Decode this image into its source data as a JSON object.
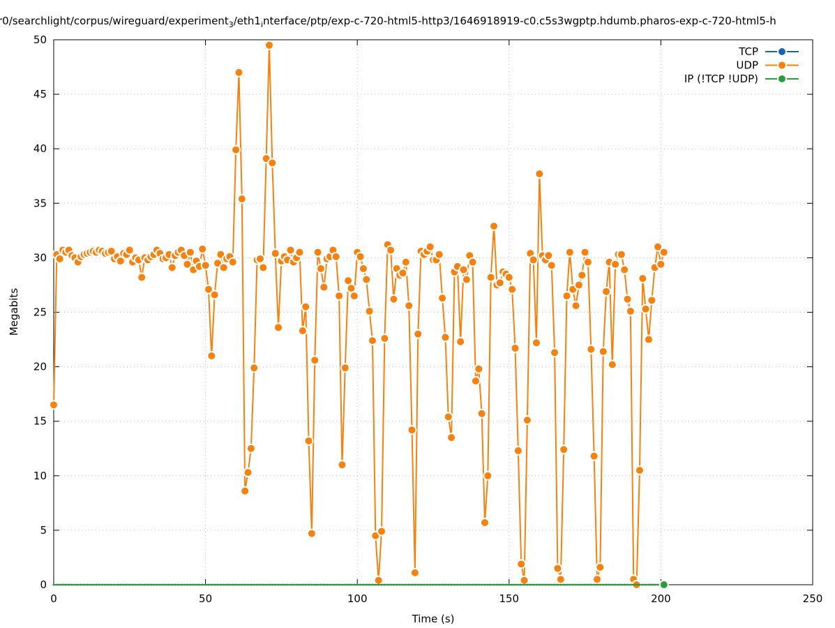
{
  "chart_data": {
    "type": "line",
    "title_parts": [
      "r0/searchlight/corpus/wireguard/experiment",
      "3",
      "/eth1",
      "i",
      "nterface/ptp/exp-c-720-html5-http3/1646918919-c0.c5s3wgptp.hdumb.pharos-exp-c-720-html5-h"
    ],
    "xlabel": "Time (s)",
    "ylabel": "Megabits",
    "xlim": [
      0,
      250
    ],
    "xticks": [
      0,
      50,
      100,
      150,
      200,
      250
    ],
    "ylim": [
      0,
      50
    ],
    "yticks": [
      0,
      5,
      10,
      15,
      20,
      25,
      30,
      35,
      40,
      45,
      50
    ],
    "grid": true,
    "legend": "top-right",
    "x": [
      0,
      1,
      2,
      3,
      4,
      5,
      6,
      7,
      8,
      9,
      10,
      11,
      12,
      13,
      14,
      15,
      16,
      17,
      18,
      19,
      20,
      21,
      22,
      23,
      24,
      25,
      26,
      27,
      28,
      29,
      30,
      31,
      32,
      33,
      34,
      35,
      36,
      37,
      38,
      39,
      40,
      41,
      42,
      43,
      44,
      45,
      46,
      47,
      48,
      49,
      50,
      51,
      52,
      53,
      54,
      55,
      56,
      57,
      58,
      59,
      60,
      61,
      62,
      63,
      64,
      65,
      66,
      67,
      68,
      69,
      70,
      71,
      72,
      73,
      74,
      75,
      76,
      77,
      78,
      79,
      80,
      81,
      82,
      83,
      84,
      85,
      86,
      87,
      88,
      89,
      90,
      91,
      92,
      93,
      94,
      95,
      96,
      97,
      98,
      99,
      100,
      101,
      102,
      103,
      104,
      105,
      106,
      107,
      108,
      109,
      110,
      111,
      112,
      113,
      114,
      115,
      116,
      117,
      118,
      119,
      120,
      121,
      122,
      123,
      124,
      125,
      126,
      127,
      128,
      129,
      130,
      131,
      132,
      133,
      134,
      135,
      136,
      137,
      138,
      139,
      140,
      141,
      142,
      143,
      144,
      145,
      146,
      147,
      148,
      149,
      150,
      151,
      152,
      153,
      154,
      155,
      156,
      157,
      158,
      159,
      160,
      161,
      162,
      163,
      164,
      165,
      166,
      167,
      168,
      169,
      170,
      171,
      172,
      173,
      174,
      175,
      176,
      177,
      178,
      179,
      180,
      181,
      182,
      183,
      184,
      185,
      186,
      187,
      188,
      189,
      190,
      191,
      192,
      193,
      194,
      195,
      196,
      197,
      198,
      199,
      200,
      201
    ],
    "series": [
      {
        "name": "TCP",
        "color": "#1a63b0",
        "values": [
          null,
          null,
          null,
          null,
          null,
          null,
          null,
          null,
          null,
          null,
          null,
          null,
          null,
          null,
          null,
          null,
          null,
          null,
          null,
          null,
          null,
          null,
          null,
          null,
          null,
          null,
          null,
          null,
          null,
          null,
          null,
          null,
          null,
          null,
          null,
          null,
          null,
          null,
          null,
          null,
          null,
          null,
          null,
          null,
          null,
          null,
          null,
          null,
          null,
          null,
          null,
          null,
          null,
          null,
          null,
          null,
          null,
          null,
          null,
          null,
          null,
          null,
          null,
          null,
          null,
          null,
          null,
          null,
          null,
          null,
          null,
          null,
          null,
          null,
          null,
          null,
          null,
          null,
          null,
          null,
          null,
          null,
          null,
          null,
          null,
          null,
          null,
          null,
          null,
          null,
          null,
          null,
          null,
          null,
          null,
          null,
          null,
          null,
          null,
          null,
          null,
          null,
          null,
          null,
          null,
          null,
          null,
          null,
          null,
          null,
          null,
          null,
          null,
          null,
          null,
          null,
          null,
          null,
          null,
          null,
          null,
          null,
          null,
          null,
          null,
          null,
          null,
          null,
          null,
          null,
          null,
          null,
          null,
          null,
          null,
          null,
          null,
          null,
          null,
          null,
          null,
          null,
          null,
          null,
          null,
          null,
          null,
          null,
          null,
          null,
          null,
          null,
          null,
          null,
          null,
          null,
          null,
          null,
          null,
          null,
          null,
          null,
          null,
          null,
          null,
          null,
          null,
          null,
          null,
          null,
          null,
          null,
          null,
          null,
          null,
          null,
          null,
          null,
          null,
          null,
          null,
          null,
          null,
          null,
          null,
          null,
          null,
          null,
          null,
          null,
          null,
          null,
          null,
          null,
          null,
          null,
          null,
          null,
          null,
          null,
          null,
          null
        ]
      },
      {
        "name": "UDP",
        "color": "#f5820f",
        "values": [
          16.5,
          30.3,
          29.9,
          30.7,
          30.5,
          30.7,
          30.2,
          30.0,
          29.6,
          30.1,
          30.3,
          30.4,
          30.5,
          30.6,
          30.5,
          30.7,
          30.6,
          30.4,
          30.5,
          30.6,
          29.9,
          30.1,
          29.7,
          30.4,
          30.3,
          30.7,
          29.6,
          30.0,
          29.8,
          28.2,
          30.0,
          29.8,
          30.1,
          30.3,
          30.7,
          30.4,
          29.9,
          30.0,
          30.3,
          29.1,
          30.2,
          30.5,
          30.7,
          30.2,
          29.4,
          30.5,
          28.9,
          29.7,
          29.2,
          30.8,
          29.3,
          27.1,
          21.0,
          26.6,
          29.5,
          30.3,
          29.1,
          29.9,
          30.1,
          29.6,
          39.9,
          47.0,
          35.4,
          8.6,
          10.3,
          12.5,
          19.9,
          29.8,
          29.9,
          29.1,
          39.1,
          49.5,
          38.7,
          30.4,
          23.6,
          29.7,
          30.1,
          29.8,
          30.7,
          29.6,
          30.0,
          30.5,
          23.3,
          25.5,
          13.2,
          4.7,
          20.6,
          30.5,
          29.0,
          27.3,
          29.9,
          30.1,
          30.7,
          30.1,
          26.5,
          11.0,
          19.9,
          27.9,
          27.2,
          26.5,
          30.5,
          30.1,
          29.0,
          28.0,
          25.1,
          22.4,
          4.5,
          0.4,
          4.9,
          22.6,
          31.2,
          30.7,
          26.2,
          29.0,
          28.4,
          28.6,
          29.6,
          25.6,
          14.2,
          1.1,
          23.0,
          30.6,
          30.3,
          30.6,
          31.0,
          29.8,
          29.8,
          30.3,
          26.3,
          22.7,
          15.4,
          13.5,
          28.7,
          29.2,
          22.3,
          28.9,
          28.0,
          30.2,
          29.6,
          18.7,
          19.8,
          15.7,
          5.7,
          10.0,
          28.2,
          32.9,
          27.5,
          27.7,
          28.7,
          28.5,
          28.2,
          27.1,
          21.7,
          12.3,
          1.9,
          0.4,
          15.1,
          30.4,
          29.8,
          22.2,
          37.7,
          30.2,
          29.8,
          30.2,
          29.3,
          21.3,
          1.5,
          0.5,
          12.4,
          26.5,
          30.5,
          27.1,
          25.6,
          27.5,
          28.4,
          30.5,
          29.6,
          21.6,
          11.8,
          0.5,
          1.6,
          21.4,
          26.9,
          29.6,
          20.2,
          29.4,
          30.3,
          30.3,
          28.9,
          26.2,
          25.1,
          0.5,
          0.0,
          10.5,
          28.1,
          25.3,
          22.5,
          26.1,
          29.1,
          31.0,
          29.4,
          30.5
        ]
      },
      {
        "name": "IP (!TCP  !UDP)",
        "color": "#2a9d3a",
        "values": [
          0,
          0,
          0,
          0,
          0,
          0,
          0,
          0,
          0,
          0,
          0,
          0,
          0,
          0,
          0,
          0,
          0,
          0,
          0,
          0,
          0,
          0,
          0,
          0,
          0,
          0,
          0,
          0,
          0,
          0,
          0,
          0,
          0,
          0,
          0,
          0,
          0,
          0,
          0,
          0,
          0,
          0,
          0,
          0,
          0,
          0,
          0,
          0,
          0,
          0,
          0,
          0,
          0,
          0,
          0,
          0,
          0,
          0,
          0,
          0,
          0,
          0,
          0,
          0,
          0,
          0,
          0,
          0,
          0,
          0,
          0,
          0,
          0,
          0,
          0,
          0,
          0,
          0,
          0,
          0,
          0,
          0,
          0,
          0,
          0,
          0,
          0,
          0,
          0,
          0,
          0,
          0,
          0,
          0,
          0,
          0,
          0,
          0,
          0,
          0,
          0,
          0,
          0,
          0,
          0,
          0,
          0,
          0,
          0,
          0,
          0,
          0,
          0,
          0,
          0,
          0,
          0,
          0,
          0,
          0,
          0,
          0,
          0,
          0,
          0,
          0,
          0,
          0,
          0,
          0,
          0,
          0,
          0,
          0,
          0,
          0,
          0,
          0,
          0,
          0,
          0,
          0,
          0,
          0,
          0,
          0,
          0,
          0,
          0,
          0,
          0,
          0,
          0,
          0,
          0,
          0,
          0,
          0,
          0,
          0,
          0,
          0,
          0,
          0,
          0,
          0,
          0,
          0,
          0,
          0,
          0,
          0,
          0,
          0,
          0,
          0,
          0,
          0,
          0,
          0,
          0,
          0,
          0,
          0,
          0,
          0,
          0,
          0,
          0,
          0,
          0,
          0,
          0,
          0,
          0,
          0,
          0,
          0,
          0,
          0,
          0,
          0
        ]
      }
    ]
  }
}
